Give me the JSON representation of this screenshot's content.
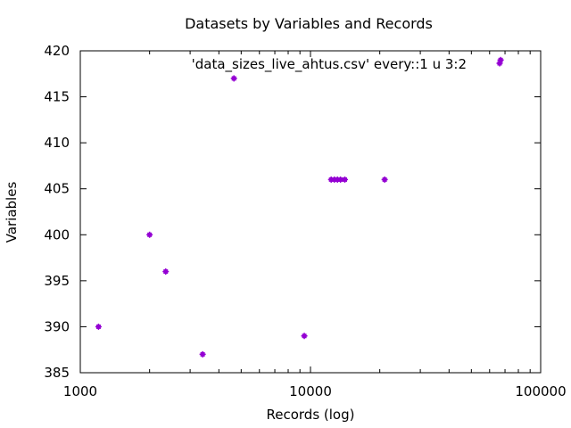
{
  "chart_data": {
    "type": "scatter",
    "title": "Datasets by Variables and Records",
    "xlabel": "Records (log)",
    "ylabel": "Variables",
    "xscale": "log",
    "xlim": [
      1000,
      100000
    ],
    "ylim": [
      385,
      420
    ],
    "xticks": [
      1000,
      10000,
      100000
    ],
    "xtick_labels": [
      "1000",
      "10000",
      "100000"
    ],
    "yticks": [
      385,
      390,
      395,
      400,
      405,
      410,
      415,
      420
    ],
    "ytick_labels": [
      "385",
      "390",
      "395",
      "400",
      "405",
      "410",
      "415",
      "420"
    ],
    "grid": false,
    "legend_position": "top-right",
    "series": [
      {
        "name": "'data_sizes_live_ahtus.csv' every::1 u 3:2",
        "color": "#9400d3",
        "points": [
          {
            "x": 1200,
            "y": 390
          },
          {
            "x": 2000,
            "y": 400
          },
          {
            "x": 2350,
            "y": 396
          },
          {
            "x": 3400,
            "y": 387
          },
          {
            "x": 4650,
            "y": 417
          },
          {
            "x": 9400,
            "y": 389
          },
          {
            "x": 12300,
            "y": 406
          },
          {
            "x": 12700,
            "y": 406
          },
          {
            "x": 13100,
            "y": 406
          },
          {
            "x": 13500,
            "y": 406
          },
          {
            "x": 14100,
            "y": 406
          },
          {
            "x": 21000,
            "y": 406
          },
          {
            "x": 67000,
            "y": 419
          }
        ]
      }
    ]
  }
}
